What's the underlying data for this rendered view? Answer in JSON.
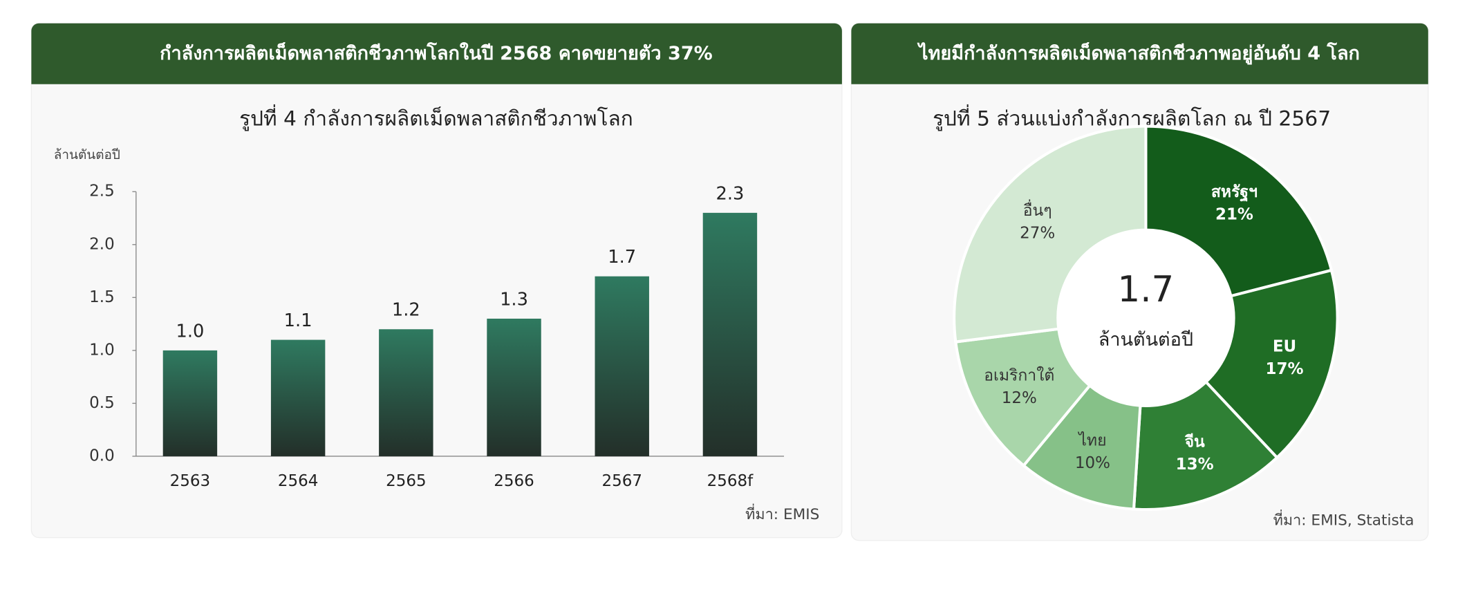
{
  "panels": [
    {
      "header": "กำลังการผลิตเม็ดพลาสติกชีวภาพโลกในปี 2568 คาดขยายตัว 37%",
      "source": "ที่มา: EMIS"
    },
    {
      "header": "ไทยมีกำลังการผลิตเม็ดพลาสติกชีวภาพอยู่อันดับ 4 โลก",
      "source": "ที่มา: EMIS, Statista"
    }
  ],
  "chart_data": [
    {
      "type": "bar",
      "title": "รูปที่ 4  กำลังการผลิตเม็ดพลาสติกชีวภาพโลก",
      "y_label": "ล้านตันต่อปี",
      "categories": [
        "2563",
        "2564",
        "2565",
        "2566",
        "2567",
        "2568f"
      ],
      "values": [
        1.0,
        1.1,
        1.2,
        1.3,
        1.7,
        2.3
      ],
      "value_labels": [
        "1.0",
        "1.1",
        "1.2",
        "1.3",
        "1.7",
        "2.3"
      ],
      "color": [
        "#2f7a60",
        "#232f29"
      ],
      "ylim": [
        0,
        2.5
      ],
      "yticks": [
        {
          "value": 0,
          "label": "0.0"
        },
        0.5,
        {
          "value": 1,
          "label": "1.0"
        },
        1.5,
        {
          "value": 2,
          "label": "2.0"
        },
        2.5
      ],
      "grid": false
    },
    {
      "type": "pie",
      "title": "รูปที่ 5  ส่วนแบ่งกำลังการผลิตโลก ณ ปี 2567",
      "categories": [
        "สหรัฐฯ",
        "EU",
        "จีน",
        "ไทย",
        "อเมริกาใต้",
        "อื่นๆ"
      ],
      "values": [
        21,
        17,
        13,
        10,
        12,
        27
      ],
      "value_labels": [
        "21%",
        "17%",
        "13%",
        "10%",
        "12%",
        "27%"
      ],
      "colors": [
        "#135c1b",
        "#1f6d25",
        "#2f8035",
        "#86c188",
        "#a9d6aa",
        "#d3e9d3"
      ],
      "center_value": 1.7,
      "center_label": "ล้านตันต่อปี"
    }
  ]
}
